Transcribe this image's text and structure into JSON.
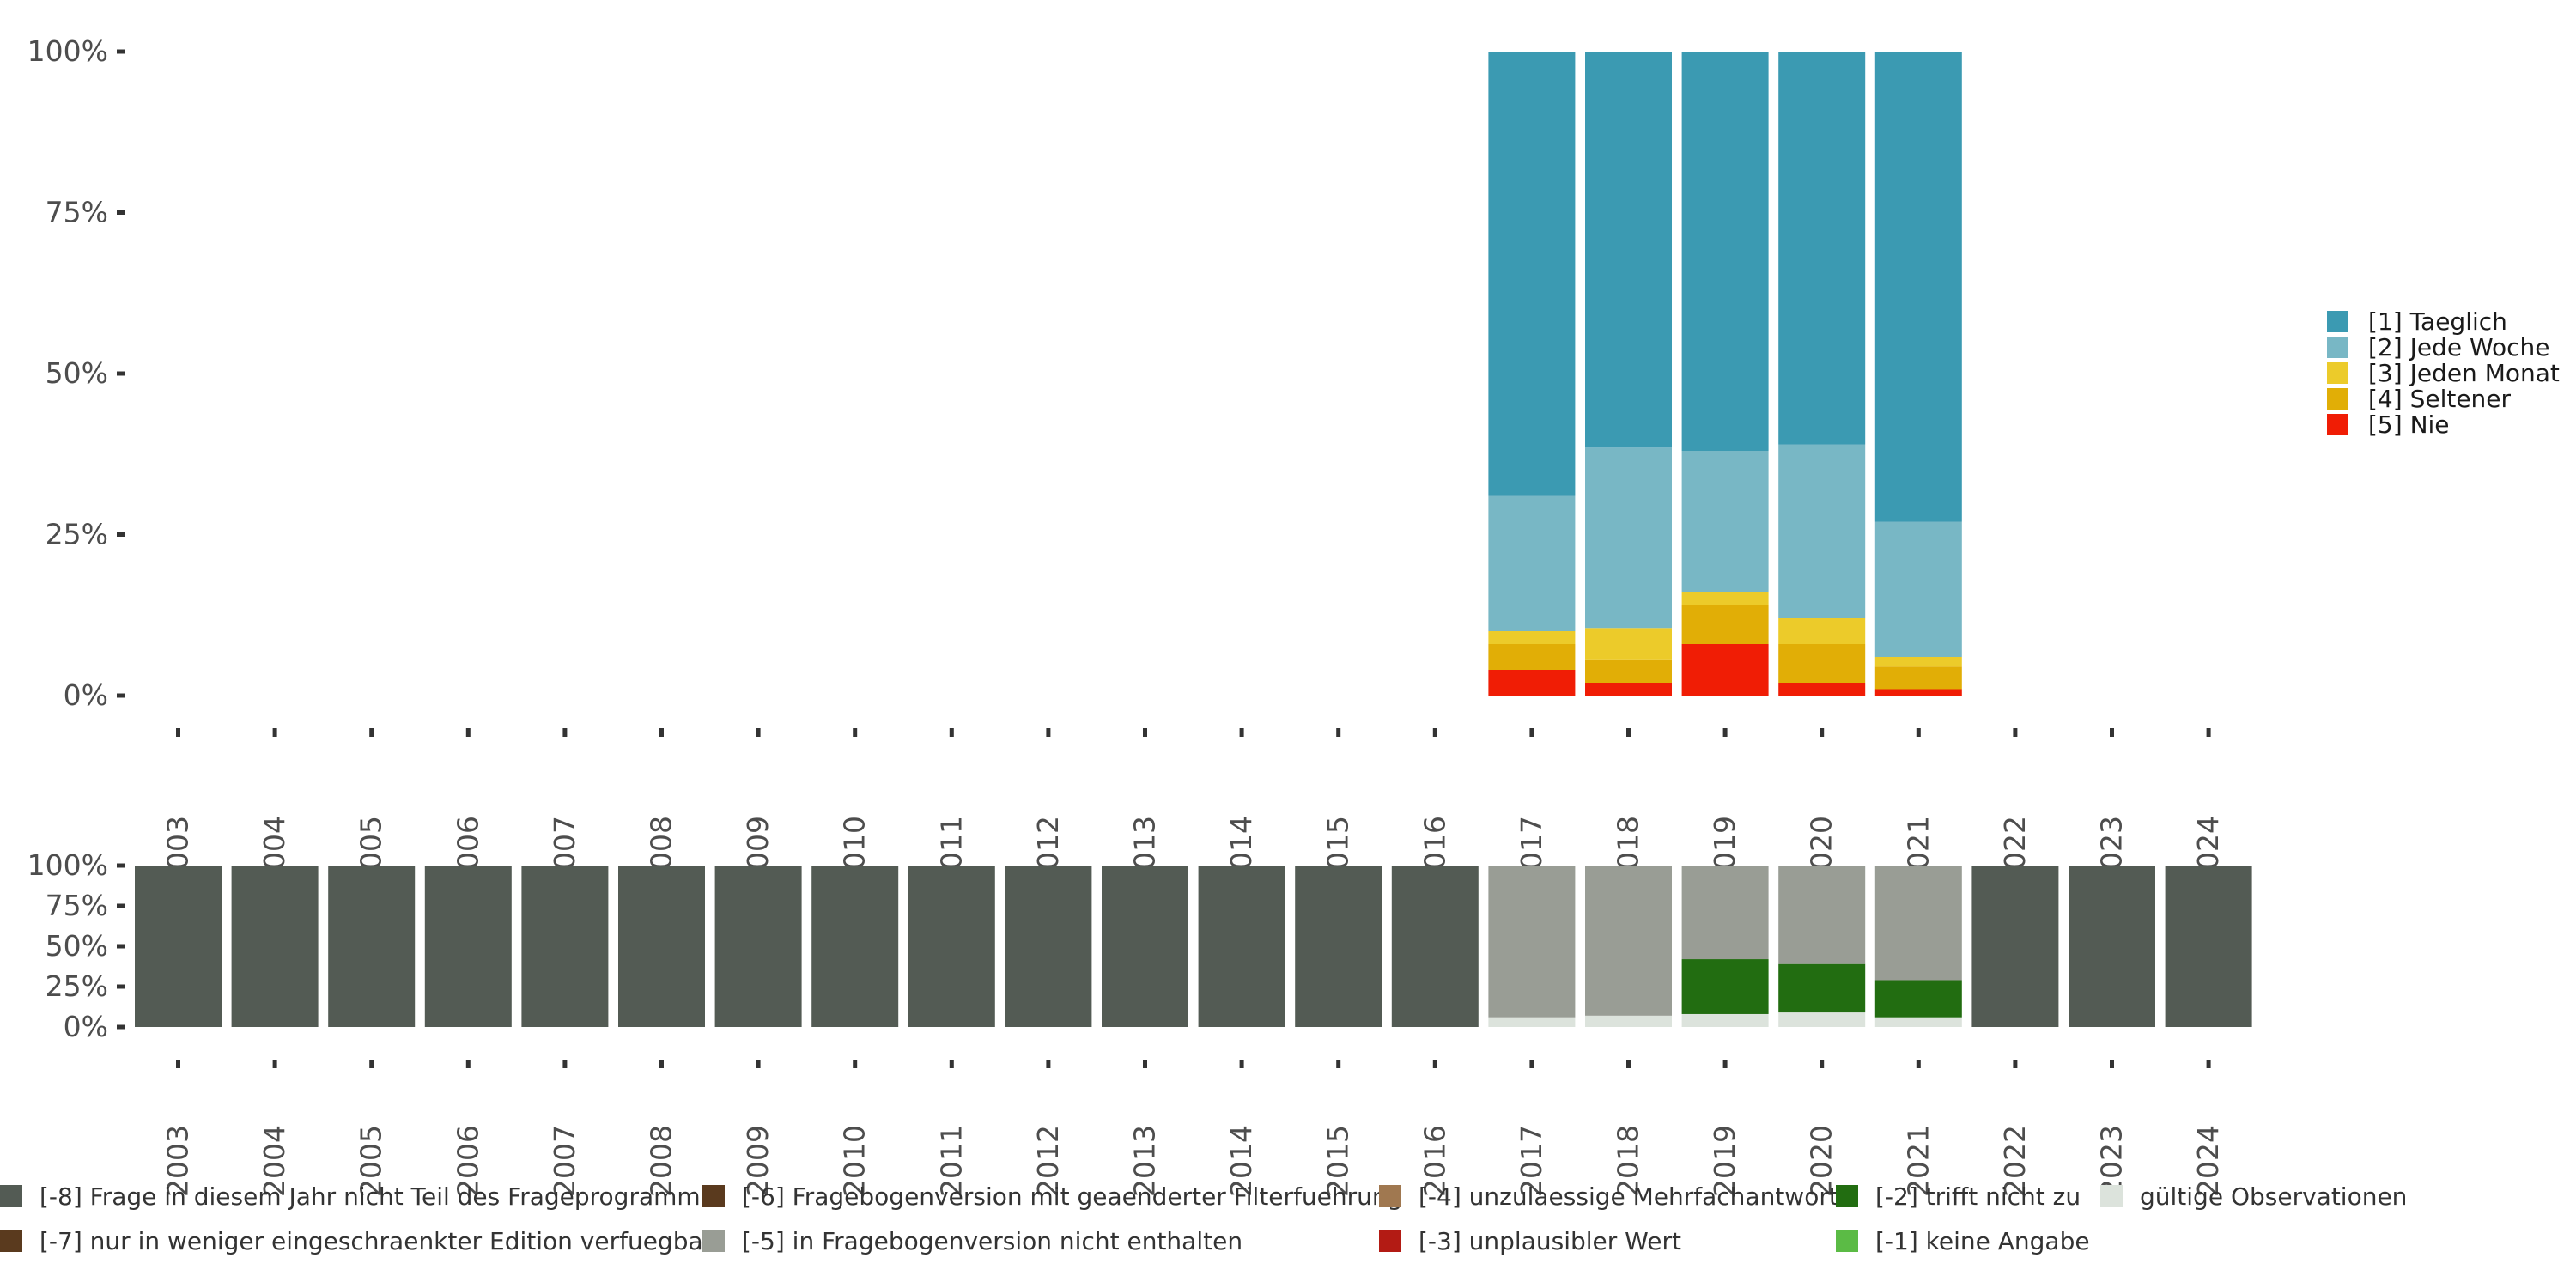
{
  "chart_data": [
    {
      "type": "bar",
      "stacked": true,
      "categories": [
        "2003",
        "2004",
        "2005",
        "2006",
        "2007",
        "2008",
        "2009",
        "2010",
        "2011",
        "2012",
        "2013",
        "2014",
        "2015",
        "2016",
        "2017",
        "2018",
        "2019",
        "2020",
        "2021",
        "2022",
        "2023",
        "2024"
      ],
      "y_ticks": [
        "0%",
        "25%",
        "50%",
        "75%",
        "100%"
      ],
      "ylim": [
        0,
        100
      ],
      "legend_position": "right",
      "series": [
        {
          "name": "[5] Nie",
          "color": "#f01d05",
          "values": [
            null,
            null,
            null,
            null,
            null,
            null,
            null,
            null,
            null,
            null,
            null,
            null,
            null,
            null,
            4,
            2,
            8,
            2,
            1,
            null,
            null,
            null
          ]
        },
        {
          "name": "[4] Seltener",
          "color": "#e1ae06",
          "values": [
            null,
            null,
            null,
            null,
            null,
            null,
            null,
            null,
            null,
            null,
            null,
            null,
            null,
            null,
            4,
            3.5,
            6,
            6,
            3.5,
            null,
            null,
            null
          ]
        },
        {
          "name": "[3] Jeden Monat",
          "color": "#eccb2a",
          "values": [
            null,
            null,
            null,
            null,
            null,
            null,
            null,
            null,
            null,
            null,
            null,
            null,
            null,
            null,
            2,
            5,
            2,
            4,
            1.5,
            null,
            null,
            null
          ]
        },
        {
          "name": "[2] Jede Woche",
          "color": "#78b7c5",
          "values": [
            null,
            null,
            null,
            null,
            null,
            null,
            null,
            null,
            null,
            null,
            null,
            null,
            null,
            null,
            21,
            28,
            22,
            27,
            21,
            null,
            null,
            null
          ]
        },
        {
          "name": "[1] Taeglich",
          "color": "#3b9ab2",
          "values": [
            null,
            null,
            null,
            null,
            null,
            null,
            null,
            null,
            null,
            null,
            null,
            null,
            null,
            null,
            69,
            61.5,
            62,
            61,
            73,
            null,
            null,
            null
          ]
        }
      ],
      "legend": [
        {
          "label": "[1] Taeglich",
          "color": "#3b9ab2"
        },
        {
          "label": "[2] Jede Woche",
          "color": "#78b7c5"
        },
        {
          "label": "[3] Jeden Monat",
          "color": "#eccb2a"
        },
        {
          "label": "[4] Seltener",
          "color": "#e1ae06"
        },
        {
          "label": "[5] Nie",
          "color": "#f01d05"
        }
      ]
    },
    {
      "type": "bar",
      "stacked": true,
      "categories": [
        "2003",
        "2004",
        "2005",
        "2006",
        "2007",
        "2008",
        "2009",
        "2010",
        "2011",
        "2012",
        "2013",
        "2014",
        "2015",
        "2016",
        "2017",
        "2018",
        "2019",
        "2020",
        "2021",
        "2022",
        "2023",
        "2024"
      ],
      "y_ticks": [
        "0%",
        "25%",
        "50%",
        "75%",
        "100%"
      ],
      "ylim": [
        0,
        100
      ],
      "legend_position": "bottom",
      "series": [
        {
          "name": "gültige Observationen",
          "color": "#dce3dc",
          "values": [
            0,
            0,
            0,
            0,
            0,
            0,
            0,
            0,
            0,
            0,
            0,
            0,
            0,
            0,
            6,
            7,
            8,
            9,
            6,
            0,
            0,
            0
          ]
        },
        {
          "name": "[-2] trifft nicht zu",
          "color": "#226d11",
          "values": [
            0,
            0,
            0,
            0,
            0,
            0,
            0,
            0,
            0,
            0,
            0,
            0,
            0,
            0,
            0,
            0,
            34,
            30,
            23,
            0,
            0,
            0
          ]
        },
        {
          "name": "[-5] in Fragebogenversion nicht enthalten",
          "color": "#999d95",
          "values": [
            0,
            0,
            0,
            0,
            0,
            0,
            0,
            0,
            0,
            0,
            0,
            0,
            0,
            0,
            94,
            93,
            58,
            61,
            71,
            0,
            0,
            0
          ]
        },
        {
          "name": "[-8] Frage in diesem Jahr nicht Teil des Frageprogramms",
          "color": "#535b54",
          "values": [
            100,
            100,
            100,
            100,
            100,
            100,
            100,
            100,
            100,
            100,
            100,
            100,
            100,
            100,
            0,
            0,
            0,
            0,
            0,
            100,
            100,
            100
          ]
        }
      ],
      "legend": [
        {
          "label": "[-8] Frage in diesem Jahr nicht Teil des Frageprogramms",
          "color": "#535b54"
        },
        {
          "label": "[-7] nur in weniger eingeschraenkter Edition verfuegbar",
          "color": "#5a3a1e"
        },
        {
          "label": "[-6] Fragebogenversion mit geaenderter Filterfuehrung",
          "color": "#5a3a1e"
        },
        {
          "label": "[-5] in Fragebogenversion nicht enthalten",
          "color": "#999d95"
        },
        {
          "label": "[-4] unzulaessige Mehrfachantwort",
          "color": "#a07850"
        },
        {
          "label": "[-3] unplausibler Wert",
          "color": "#b31b14"
        },
        {
          "label": "[-2] trifft nicht zu",
          "color": "#226d11"
        },
        {
          "label": "[-1] keine Angabe",
          "color": "#5bbb45"
        },
        {
          "label": "gültige Observationen",
          "color": "#dce3dc"
        }
      ]
    }
  ]
}
